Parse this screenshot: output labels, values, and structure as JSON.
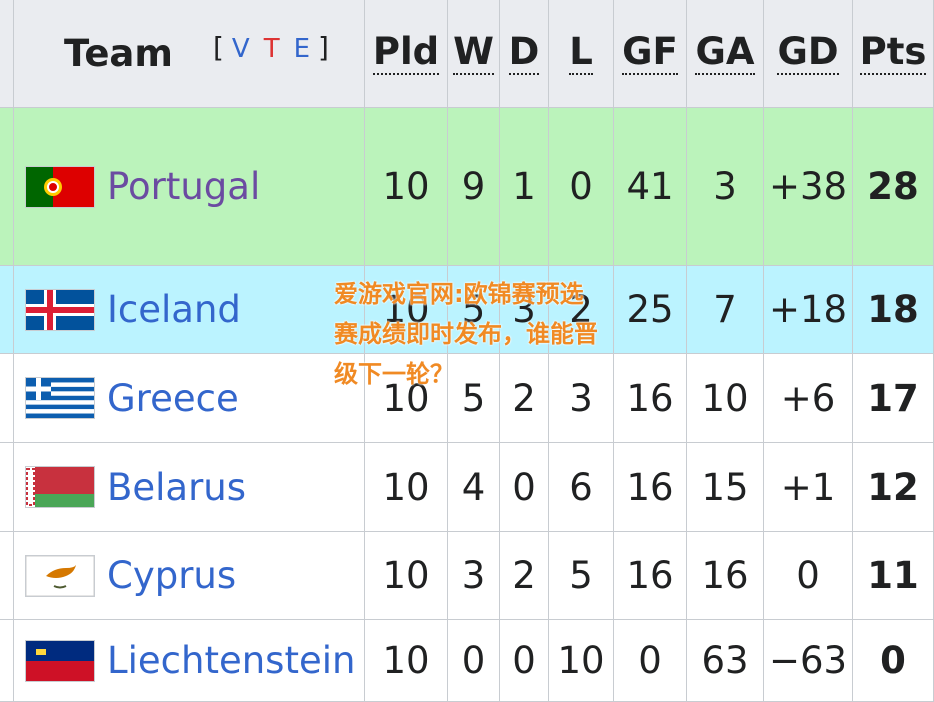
{
  "header": {
    "team": "Team",
    "open": "[",
    "vte": [
      "V",
      "T",
      "E"
    ],
    "close": "]",
    "columns": [
      "Pld",
      "W",
      "D",
      "L",
      "GF",
      "GA",
      "GD",
      "Pts"
    ]
  },
  "rows": [
    {
      "team": "Portugal",
      "cells": [
        "10",
        "9",
        "1",
        "0",
        "41",
        "3",
        "+38",
        "28"
      ]
    },
    {
      "team": "Iceland",
      "cells": [
        "10",
        "5",
        "3",
        "2",
        "25",
        "7",
        "+18",
        "18"
      ]
    },
    {
      "team": "Greece",
      "cells": [
        "10",
        "5",
        "2",
        "3",
        "16",
        "10",
        "+6",
        "17"
      ]
    },
    {
      "team": "Belarus",
      "cells": [
        "10",
        "4",
        "0",
        "6",
        "16",
        "15",
        "+1",
        "12"
      ]
    },
    {
      "team": "Cyprus",
      "cells": [
        "10",
        "3",
        "2",
        "5",
        "16",
        "16",
        "0",
        "11"
      ]
    },
    {
      "team": "Liechtenstein",
      "cells": [
        "10",
        "0",
        "0",
        "10",
        "0",
        "63",
        "−63",
        "0"
      ]
    }
  ],
  "watermark": "爱游戏官网:欧锦赛预选赛成绩即时发布，谁能晋级下一轮？"
}
